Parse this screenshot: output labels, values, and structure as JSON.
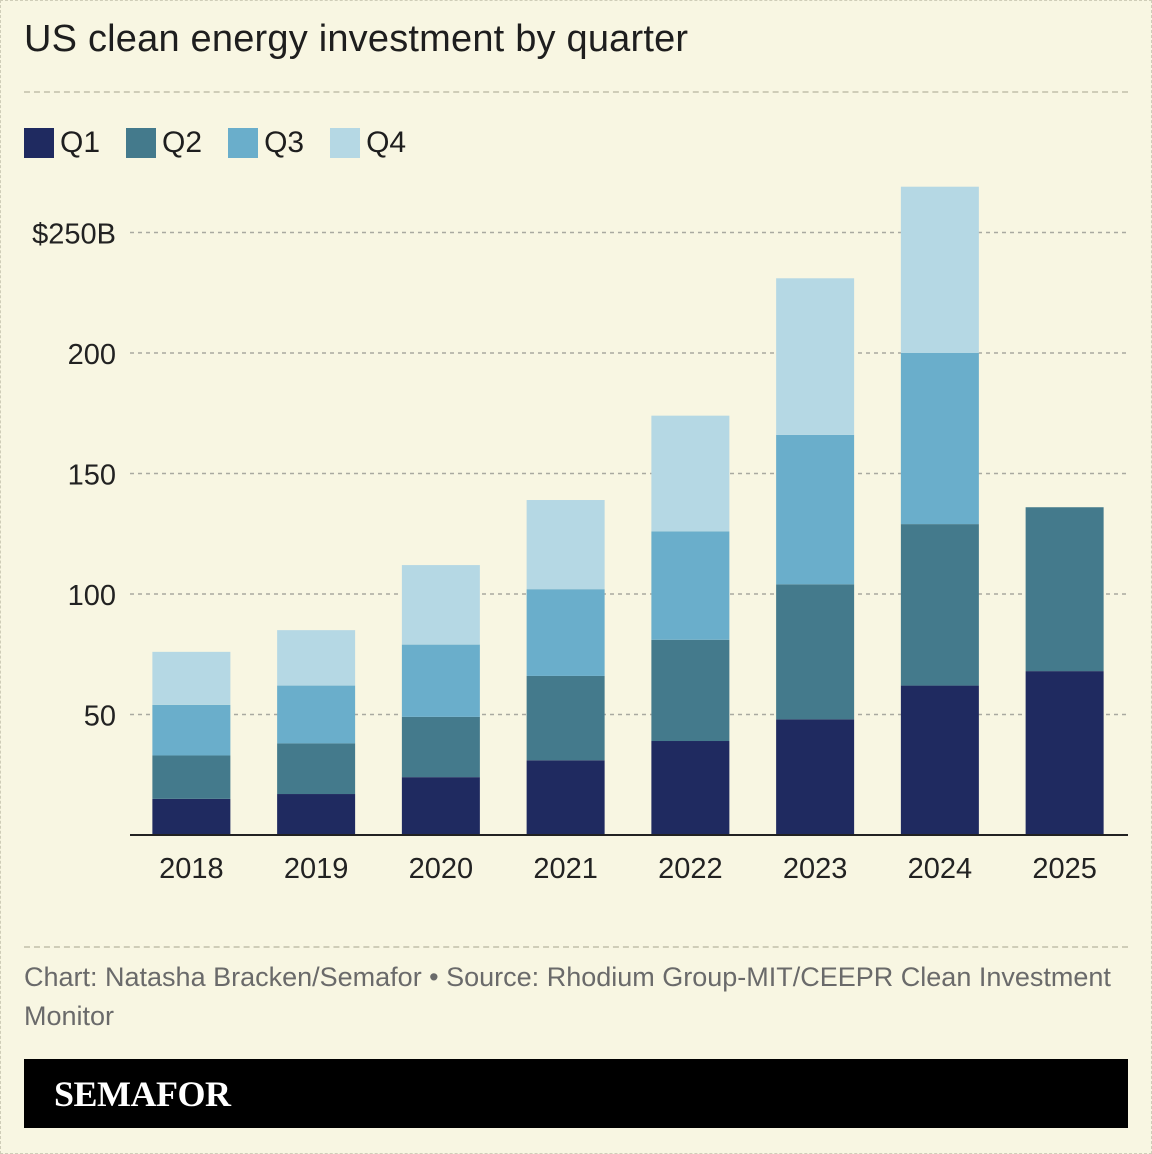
{
  "title": "US clean energy investment by quarter",
  "legend": [
    {
      "label": "Q1",
      "color": "#1f2a60"
    },
    {
      "label": "Q2",
      "color": "#447a8c"
    },
    {
      "label": "Q3",
      "color": "#6aaecb"
    },
    {
      "label": "Q4",
      "color": "#b5d8e4"
    }
  ],
  "chart_data": {
    "type": "bar",
    "stacked": true,
    "categories": [
      "2018",
      "2019",
      "2020",
      "2021",
      "2022",
      "2023",
      "2024",
      "2025"
    ],
    "series": [
      {
        "name": "Q1",
        "color": "#1f2a60",
        "values": [
          15,
          17,
          24,
          31,
          39,
          48,
          62,
          68
        ]
      },
      {
        "name": "Q2",
        "color": "#447a8c",
        "values": [
          18,
          21,
          25,
          35,
          42,
          56,
          67,
          68
        ]
      },
      {
        "name": "Q3",
        "color": "#6aaecb",
        "values": [
          21,
          24,
          30,
          36,
          45,
          62,
          71,
          null
        ]
      },
      {
        "name": "Q4",
        "color": "#b5d8e4",
        "values": [
          22,
          23,
          33,
          37,
          48,
          65,
          69,
          null
        ]
      }
    ],
    "yticks": [
      {
        "value": 50,
        "label": "50"
      },
      {
        "value": 100,
        "label": "100"
      },
      {
        "value": 150,
        "label": "150"
      },
      {
        "value": 200,
        "label": "200"
      },
      {
        "value": 250,
        "label": "$250B"
      }
    ],
    "ylim": [
      0,
      270
    ],
    "grid": true,
    "legend_position": "top-left"
  },
  "footer": {
    "credit": "Chart: Natasha Bracken/Semafor • Source: Rhodium Group-MIT/CEEPR Clean Investment Monitor"
  },
  "brand": "SEMAFOR"
}
